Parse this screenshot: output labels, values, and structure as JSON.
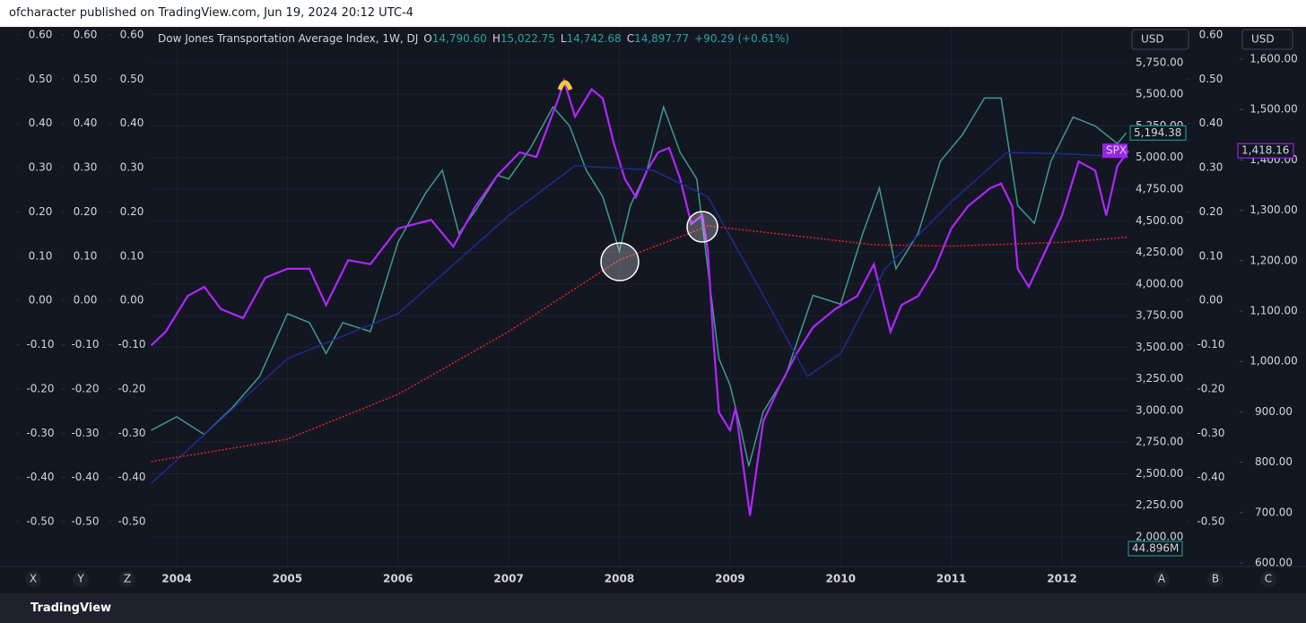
{
  "header": {
    "publisher": "ofcharacter published on TradingView.com, Jun 19, 2024 20:12 UTC-4"
  },
  "footer": {
    "brand": "TradingView"
  },
  "toolbar": {
    "currency_left": "USD",
    "currency_right": "USD",
    "corner_buttons_left": [
      "X",
      "Y",
      "Z"
    ],
    "corner_buttons_right": [
      "A",
      "B",
      "C"
    ]
  },
  "chart_data": {
    "type": "line",
    "legend": {
      "symbol": "Dow Jones Transportation Average Index, 1W, DJ",
      "ohlc": [
        [
          "O",
          "14,790.60"
        ],
        [
          "H",
          "15,022.75"
        ],
        [
          "L",
          "14,742.68"
        ],
        [
          "C",
          "14,897.77"
        ]
      ],
      "change": "+90.29 (+0.61%)"
    },
    "xlim": [
      2003.765,
      2012.6
    ],
    "xticks": [
      2004,
      2005,
      2006,
      2007,
      2008,
      2009,
      2010,
      2011,
      2012
    ],
    "ylim": [
      1766,
      6033
    ],
    "yticks": [
      {
        "value": 2000,
        "label": "2,000.00"
      },
      {
        "value": 2250,
        "label": "2,250.00"
      },
      {
        "value": 2500,
        "label": "2,500.00"
      },
      {
        "value": 2750,
        "label": "2,750.00"
      },
      {
        "value": 3000,
        "label": "3,000.00"
      },
      {
        "value": 3250,
        "label": "3,250.00"
      },
      {
        "value": 3500,
        "label": "3,500.00"
      },
      {
        "value": 3750,
        "label": "3,750.00"
      },
      {
        "value": 4000,
        "label": "4,000.00"
      },
      {
        "value": 4250,
        "label": "4,250.00"
      },
      {
        "value": 4500,
        "label": "4,500.00"
      },
      {
        "value": 4750,
        "label": "4,750.00"
      },
      {
        "value": 5000,
        "label": "5,000.00"
      },
      {
        "value": 5250,
        "label": "5,250.00"
      },
      {
        "value": 5500,
        "label": "5,500.00"
      },
      {
        "value": 5750,
        "label": "5,750.00"
      }
    ],
    "y2lim": [
      593,
      1664
    ],
    "y2ticks": [
      {
        "value": 600,
        "label": "600.00"
      },
      {
        "value": 700,
        "label": "700.00"
      },
      {
        "value": 800,
        "label": "800.00"
      },
      {
        "value": 900,
        "label": "900.00"
      },
      {
        "value": 1000,
        "label": "1,000.00"
      },
      {
        "value": 1100,
        "label": "1,100.00"
      },
      {
        "value": 1200,
        "label": "1,200.00"
      },
      {
        "value": 1300,
        "label": "1,300.00"
      },
      {
        "value": 1400,
        "label": "1,400.00"
      },
      {
        "value": 1500,
        "label": "1,500.00"
      },
      {
        "value": 1600,
        "label": "1,600.00"
      }
    ],
    "y3lim": [
      -0.601,
      0.618
    ],
    "y3ticks": [
      {
        "value": 0.6,
        "label": "0.60"
      },
      {
        "value": 0.5,
        "label": "0.50"
      },
      {
        "value": 0.4,
        "label": "0.40"
      },
      {
        "value": 0.3,
        "label": "0.30"
      },
      {
        "value": 0.2,
        "label": "0.20"
      },
      {
        "value": 0.1,
        "label": "0.10"
      },
      {
        "value": 0,
        "label": "0.00"
      },
      {
        "value": -0.1,
        "label": "-0.10"
      },
      {
        "value": -0.2,
        "label": "-0.20"
      },
      {
        "value": -0.3,
        "label": "-0.30"
      },
      {
        "value": -0.4,
        "label": "-0.40"
      },
      {
        "value": -0.5,
        "label": "-0.50"
      }
    ],
    "grid": true,
    "series": [
      {
        "name": "Dow Jones Transportation Average Index, 1W, DJ",
        "color": "#3f9a8a",
        "axis": "y",
        "x": [
          2003.77,
          2004.0,
          2004.25,
          2004.5,
          2004.75,
          2005.0,
          2005.2,
          2005.35,
          2005.5,
          2005.75,
          2006.0,
          2006.25,
          2006.4,
          2006.55,
          2006.7,
          2006.9,
          2007.0,
          2007.2,
          2007.4,
          2007.55,
          2007.7,
          2007.85,
          2008.0,
          2008.1,
          2008.25,
          2008.4,
          2008.55,
          2008.7,
          2008.8,
          2008.9,
          2009.0,
          2009.1,
          2009.17,
          2009.3,
          2009.5,
          2009.75,
          2010.0,
          2010.2,
          2010.35,
          2010.5,
          2010.7,
          2010.9,
          2011.1,
          2011.3,
          2011.45,
          2011.6,
          2011.75,
          2011.9,
          2012.1,
          2012.3,
          2012.5,
          2012.58
        ],
        "values": [
          2844,
          2950,
          2810,
          3020,
          3270,
          3765,
          3695,
          3450,
          3695,
          3624,
          4330,
          4720,
          4900,
          4400,
          4580,
          4860,
          4830,
          5080,
          5400,
          5250,
          4900,
          4690,
          4260,
          4620,
          4900,
          5400,
          5040,
          4830,
          4120,
          3410,
          3200,
          2844,
          2560,
          2990,
          3270,
          3910,
          3840,
          4400,
          4760,
          4120,
          4400,
          4970,
          5180,
          5470,
          5470,
          4620,
          4480,
          4970,
          5320,
          5250,
          5110,
          5194.38
        ]
      },
      {
        "name": "SPX",
        "color": "#b026ff",
        "axis": "y2",
        "x": [
          2003.77,
          2003.9,
          2004.1,
          2004.25,
          2004.4,
          2004.6,
          2004.8,
          2005.0,
          2005.2,
          2005.35,
          2005.55,
          2005.75,
          2006.0,
          2006.3,
          2006.5,
          2006.7,
          2006.9,
          2007.1,
          2007.25,
          2007.45,
          2007.5,
          2007.6,
          2007.75,
          2007.85,
          2007.95,
          2008.05,
          2008.15,
          2008.25,
          2008.35,
          2008.45,
          2008.55,
          2008.65,
          2008.75,
          2008.8,
          2008.85,
          2008.9,
          2009.0,
          2009.05,
          2009.12,
          2009.18,
          2009.3,
          2009.45,
          2009.6,
          2009.75,
          2009.95,
          2010.15,
          2010.3,
          2010.45,
          2010.55,
          2010.7,
          2010.85,
          2011.0,
          2011.15,
          2011.35,
          2011.45,
          2011.55,
          2011.6,
          2011.7,
          2011.85,
          2012.0,
          2012.15,
          2012.3,
          2012.4,
          2012.5,
          2012.6
        ],
        "values": [
          1032,
          1059,
          1130,
          1148,
          1104,
          1086,
          1166,
          1184,
          1184,
          1112,
          1201,
          1193,
          1264,
          1281,
          1228,
          1308,
          1370,
          1415,
          1406,
          1522,
          1557,
          1486,
          1540,
          1522,
          1433,
          1362,
          1326,
          1379,
          1415,
          1424,
          1362,
          1273,
          1290,
          1219,
          1041,
          899,
          863,
          908,
          792,
          694,
          881,
          952,
          1015,
          1068,
          1104,
          1130,
          1193,
          1059,
          1112,
          1130,
          1184,
          1264,
          1308,
          1344,
          1353,
          1308,
          1184,
          1148,
          1219,
          1290,
          1397,
          1379,
          1290,
          1388,
          1418.16
        ]
      },
      {
        "color": "#1f2a8f",
        "axis": "y",
        "x": [
          2003.77,
          2005.0,
          2006.0,
          2007.0,
          2007.6,
          2008.3,
          2008.8,
          2009.3,
          2009.7,
          2010.0,
          2010.4,
          2011.0,
          2011.5,
          2012.0,
          2012.6
        ],
        "values": [
          2423,
          3410,
          3765,
          4540,
          4935,
          4900,
          4690,
          3910,
          3270,
          3450,
          4120,
          4650,
          5040,
          5030,
          5005
        ]
      },
      {
        "color": "#e02424",
        "axis": "y",
        "dashed": true,
        "x": [
          2003.77,
          2005.0,
          2006.0,
          2007.0,
          2008.0,
          2008.6,
          2008.8,
          2009.5,
          2010.3,
          2011.0,
          2012.0,
          2012.6
        ],
        "values": [
          2596,
          2773,
          3127,
          3624,
          4190,
          4390,
          4460,
          4390,
          4310,
          4300,
          4330,
          4370
        ]
      }
    ],
    "price_tags": [
      {
        "value": 5194.38,
        "label": "5,194.38",
        "axis": "y",
        "color": "#26a69a"
      },
      {
        "value": 1418.16,
        "label": "1,418.16",
        "axis": "y2",
        "color": "#b026ff"
      }
    ],
    "volume_tag": "44.896M"
  }
}
